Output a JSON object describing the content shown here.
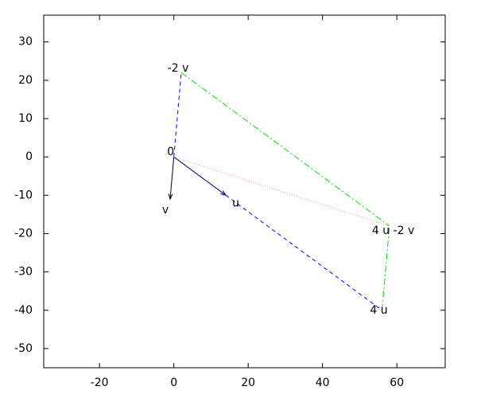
{
  "chart_data": {
    "type": "vector",
    "xlim": [
      -35,
      73
    ],
    "ylim": [
      -55,
      37
    ],
    "xticks": [
      -20,
      0,
      20,
      40,
      60
    ],
    "yticks": [
      -50,
      -40,
      -30,
      -20,
      -10,
      0,
      10,
      20,
      30
    ],
    "points": [
      {
        "label": "0",
        "x": 0,
        "y": 0
      },
      {
        "label": "u",
        "x": 14,
        "y": -10
      },
      {
        "label": "v",
        "x": -1,
        "y": -11
      },
      {
        "label": "-2 v",
        "x": 2,
        "y": 22
      },
      {
        "label": "4 u",
        "x": 56,
        "y": -40
      },
      {
        "label": "4 u -2 v",
        "x": 58,
        "y": -18
      }
    ],
    "segments": [
      {
        "from": 0,
        "to": 1,
        "color": "#000080",
        "style": "solid",
        "arrow": true
      },
      {
        "from": 0,
        "to": 2,
        "color": "#000000",
        "style": "solid",
        "arrow": true
      },
      {
        "from": 0,
        "to": 3,
        "color": "#0000ff",
        "style": "dashed",
        "arrow": false
      },
      {
        "from": 1,
        "to": 4,
        "color": "#0000ff",
        "style": "dashed",
        "arrow": false
      },
      {
        "from": 3,
        "to": 5,
        "color": "#00dd00",
        "style": "dashdot",
        "arrow": false
      },
      {
        "from": 4,
        "to": 5,
        "color": "#00dd00",
        "style": "dashdot",
        "arrow": false
      },
      {
        "from": 0,
        "to": 5,
        "color": "#ff8080",
        "style": "dotted",
        "arrow": false
      }
    ]
  }
}
